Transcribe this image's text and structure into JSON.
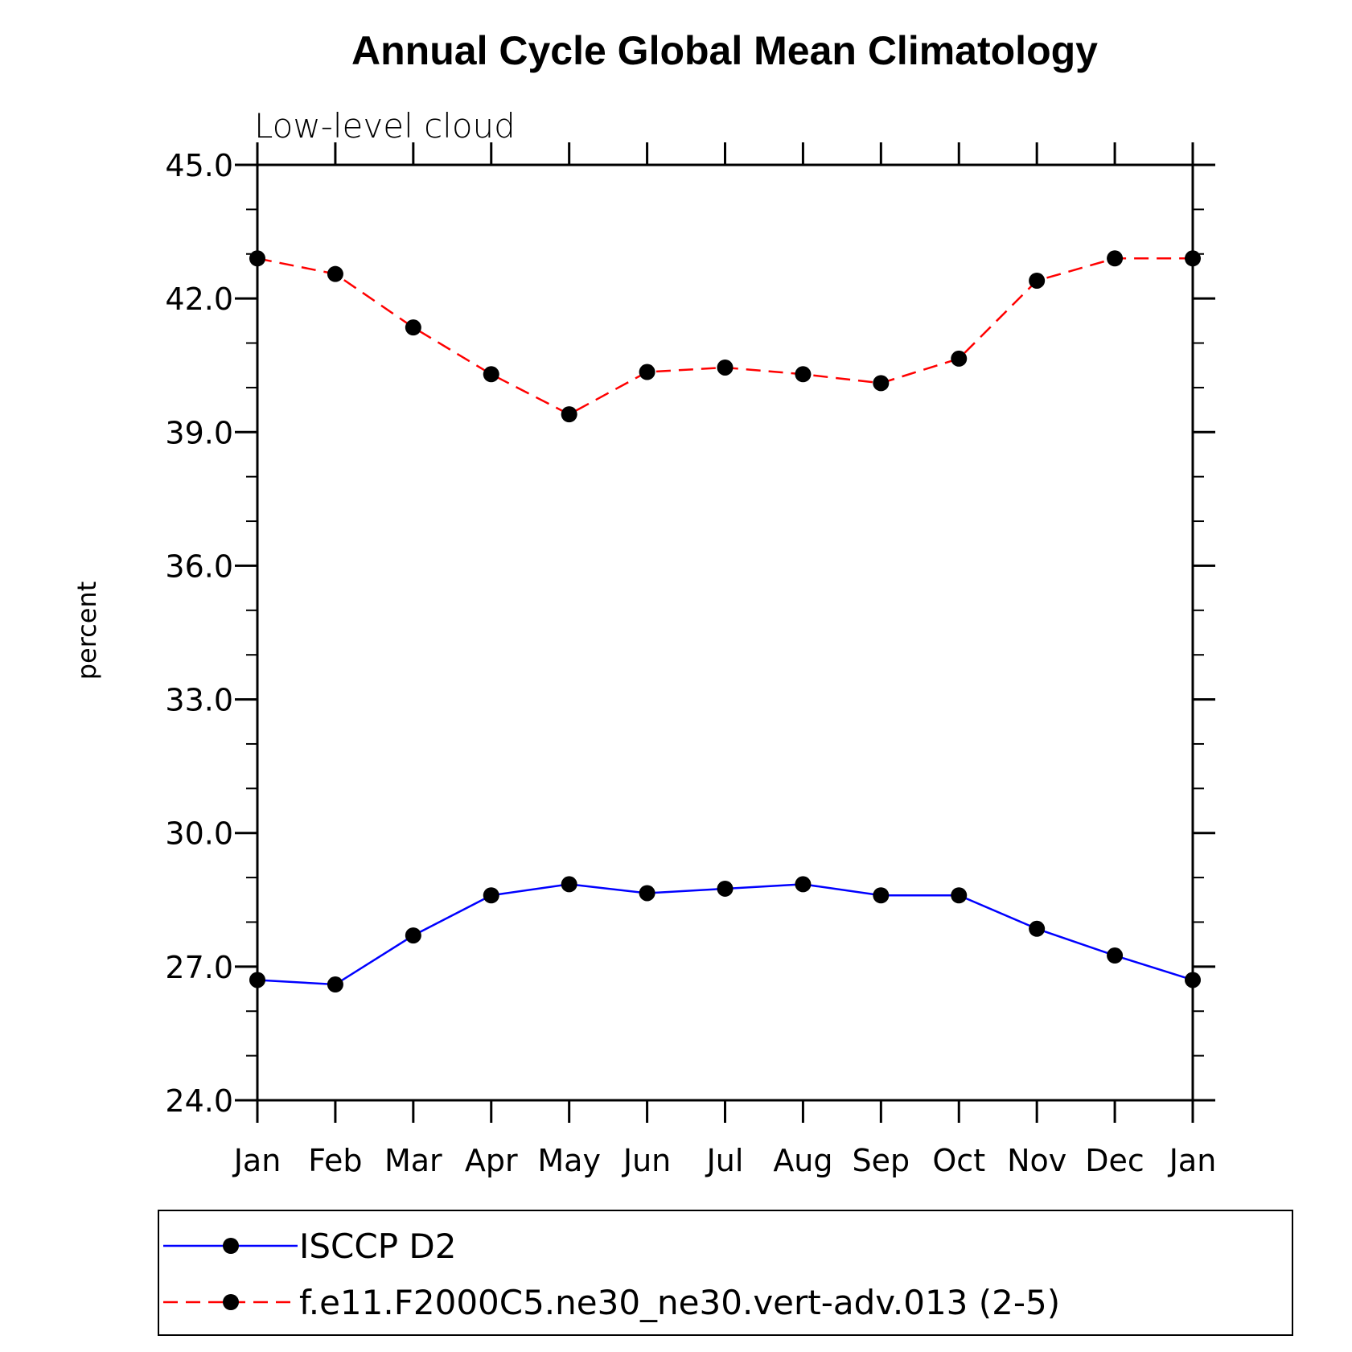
{
  "chart_data": {
    "type": "line",
    "title": "Annual Cycle Global Mean Climatology",
    "subtitle": "Low-level cloud",
    "xlabel": "",
    "ylabel": "percent",
    "categories": [
      "Jan",
      "Feb",
      "Mar",
      "Apr",
      "May",
      "Jun",
      "Jul",
      "Aug",
      "Sep",
      "Oct",
      "Nov",
      "Dec",
      "Jan"
    ],
    "ylim": [
      24.0,
      45.0
    ],
    "y_ticks": [
      "24.0",
      "27.0",
      "30.0",
      "33.0",
      "36.0",
      "39.0",
      "42.0",
      "45.0"
    ],
    "grid": false,
    "legend_position": "bottom",
    "series": [
      {
        "name": "ISCCP D2",
        "color": "#0000ff",
        "line_style": "solid",
        "marker": "filled-circle",
        "values": [
          26.7,
          26.6,
          27.7,
          28.6,
          28.85,
          28.65,
          28.75,
          28.85,
          28.6,
          28.6,
          27.85,
          27.25,
          26.7
        ]
      },
      {
        "name": "f.e11.F2000C5.ne30_ne30.vert-adv.013 (2-5)",
        "color": "#ff0000",
        "line_style": "dashed",
        "marker": "filled-circle",
        "values": [
          42.9,
          42.55,
          41.35,
          40.3,
          39.4,
          40.35,
          40.45,
          40.3,
          40.1,
          40.65,
          42.4,
          42.9,
          42.9
        ]
      }
    ]
  }
}
